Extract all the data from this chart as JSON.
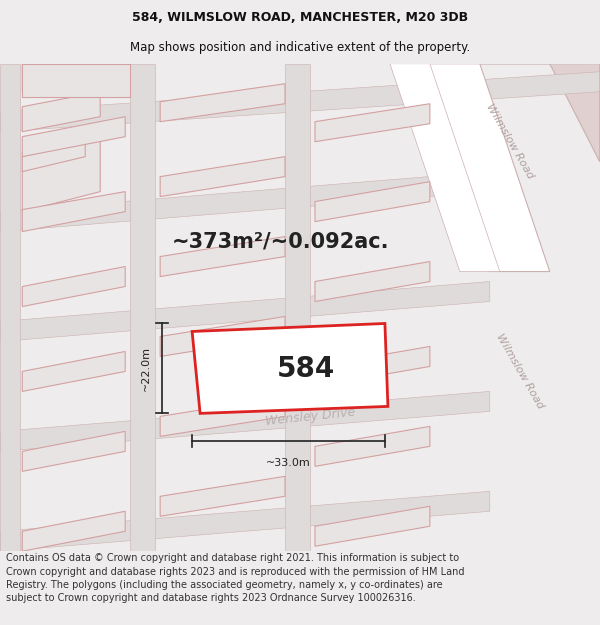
{
  "title_line1": "584, WILMSLOW ROAD, MANCHESTER, M20 3DB",
  "title_line2": "Map shows position and indicative extent of the property.",
  "area_text": "~373m²/~0.092ac.",
  "plot_number": "584",
  "dim_width": "~33.0m",
  "dim_height": "~22.0m",
  "road_label_wensley": "Wensley Drive",
  "road_label_wilmslow1": "Wilmslow Road",
  "road_label_wilmslow2": "Wilmslow Road",
  "footer_text": "Contains OS data © Crown copyright and database right 2021. This information is subject to Crown copyright and database rights 2023 and is reproduced with the permission of HM Land Registry. The polygons (including the associated geometry, namely x, y co-ordinates) are subject to Crown copyright and database rights 2023 Ordnance Survey 100026316.",
  "bg_color": "#eeecec",
  "map_bg": "#edeaea",
  "plot_fill": "#ffffff",
  "plot_edge": "#dd2222",
  "building_fill": "#e8e4e4",
  "building_edge": "#d4a0a0",
  "road_fill": "#ffffff",
  "road_edge": "#ccb0b0",
  "wilmslow_fill": "#e0d0d0",
  "title_fontsize": 9.0,
  "subtitle_fontsize": 8.5,
  "area_fontsize": 15,
  "plot_fontsize": 20,
  "footer_fontsize": 7.0
}
